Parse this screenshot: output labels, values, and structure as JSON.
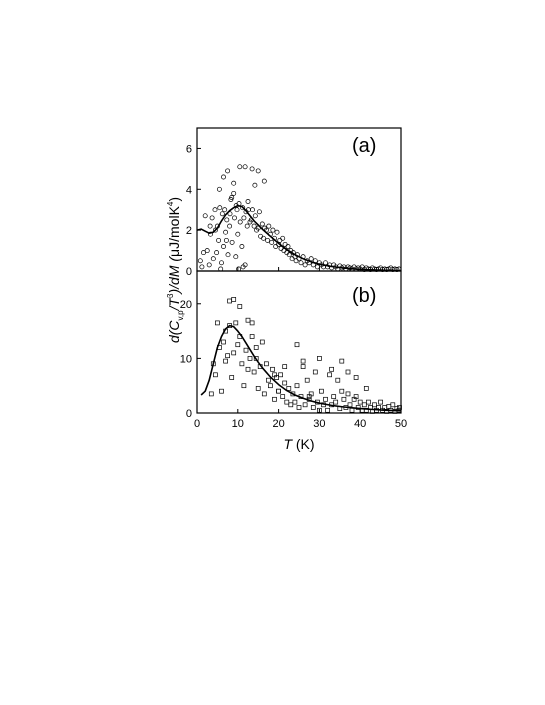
{
  "chart_data": [
    {
      "panel_label": "(a)",
      "type": "scatter",
      "xlim": [
        0,
        50
      ],
      "ylim": [
        0,
        7
      ],
      "xticks": [
        0,
        10,
        20,
        30,
        40,
        50
      ],
      "yticks": [
        0,
        2,
        4,
        6
      ],
      "ytick_labels": [
        "0",
        "2",
        "4",
        "6"
      ],
      "marker": "circle",
      "series": [
        {
          "kind": "points",
          "x": [
            0.8,
            1.2,
            1.6,
            2.0,
            2.5,
            3.0,
            3.3,
            3.7,
            4.0,
            4.4,
            4.8,
            5.0,
            5.3,
            5.6,
            6.0,
            6.2,
            6.5,
            6.8,
            7.0,
            7.3,
            7.6,
            8.0,
            8.3,
            8.6,
            9.0,
            9.2,
            9.5,
            9.8,
            10.0,
            10.3,
            10.6,
            11.0,
            11.2,
            11.5,
            11.8,
            12.0,
            12.3,
            12.6,
            13.0,
            13.3,
            13.6,
            14.0,
            14.3,
            14.6,
            15.0,
            15.3,
            15.6,
            16.0,
            16.3,
            16.6,
            17.0,
            17.3,
            17.6,
            18.0,
            18.3,
            18.6,
            19.0,
            19.3,
            19.6,
            20.0,
            20.3,
            20.6,
            21.0,
            21.3,
            21.6,
            22.0,
            22.3,
            22.6,
            23.0,
            23.3,
            23.6,
            24.0,
            24.3,
            24.6,
            25.0,
            25.5,
            26.0,
            26.5,
            27.0,
            27.5,
            28.0,
            28.5,
            29.0,
            29.5,
            30.0,
            30.5,
            31.0,
            31.5,
            32.0,
            32.5,
            33.0,
            33.5,
            34.0,
            34.5,
            35.0,
            35.5,
            36.0,
            36.5,
            37.0,
            37.5,
            38.0,
            38.5,
            39.0,
            39.5,
            40.0,
            40.5,
            41.0,
            41.5,
            42.0,
            42.5,
            43.0,
            43.5,
            44.0,
            44.5,
            45.0,
            45.5,
            46.0,
            46.5,
            47.0,
            47.5,
            48.0,
            48.5,
            49.0,
            49.5,
            5.5,
            7.5,
            9.0,
            10.5,
            11.8,
            13.5,
            15.0,
            6.5,
            8.5,
            12.5,
            14.2,
            16.5,
            4.5,
            3.2,
            5.8,
            7.2,
            9.6,
            11.3,
            8.1,
            10.2
          ],
          "y": [
            0.5,
            0.2,
            0.9,
            2.7,
            1.0,
            0.3,
            1.8,
            2.6,
            0.6,
            3.0,
            0.9,
            2.2,
            1.5,
            3.1,
            0.4,
            2.8,
            1.2,
            3.0,
            1.9,
            2.5,
            0.8,
            2.2,
            3.5,
            1.4,
            3.8,
            2.6,
            0.7,
            3.0,
            1.8,
            3.3,
            2.4,
            1.2,
            3.1,
            2.6,
            0.3,
            2.9,
            2.2,
            3.0,
            2.4,
            2.5,
            3.0,
            2.2,
            2.7,
            2.0,
            2.1,
            2.9,
            1.7,
            2.3,
            1.6,
            2.1,
            2.0,
            1.5,
            2.2,
            1.8,
            1.4,
            2.0,
            1.6,
            1.2,
            1.9,
            1.3,
            1.5,
            1.1,
            1.6,
            1.0,
            1.3,
            0.9,
            1.2,
            0.8,
            1.0,
            0.6,
            0.9,
            0.7,
            0.5,
            0.8,
            0.6,
            0.4,
            0.7,
            0.3,
            0.5,
            0.4,
            0.6,
            0.3,
            0.5,
            0.2,
            0.4,
            0.3,
            0.2,
            0.4,
            0.2,
            0.3,
            0.15,
            0.3,
            0.2,
            0.1,
            0.25,
            0.15,
            0.2,
            0.1,
            0.2,
            0.15,
            0.1,
            0.2,
            0.1,
            0.15,
            0.1,
            0.2,
            0.05,
            0.15,
            0.1,
            0.05,
            0.15,
            0.1,
            0.05,
            0.1,
            0.15,
            0.05,
            0.1,
            0.05,
            0.1,
            0.15,
            0.05,
            0.1,
            0.05,
            0.1,
            4.0,
            4.9,
            4.3,
            5.1,
            5.1,
            5.0,
            4.9,
            4.6,
            3.6,
            3.4,
            4.2,
            4.4,
            2.0,
            2.2,
            0.1,
            1.5,
            3.2,
            0.2,
            2.8,
            0.1
          ]
        },
        {
          "kind": "curve",
          "x": [
            0,
            1,
            2,
            3,
            4,
            5,
            6,
            7,
            8,
            9,
            10,
            11,
            12,
            13,
            14,
            15,
            16,
            18,
            20,
            22,
            24,
            26,
            28,
            30,
            33,
            36,
            40,
            45,
            50
          ],
          "y": [
            2.0,
            2.05,
            1.95,
            1.85,
            1.9,
            2.1,
            2.45,
            2.75,
            2.95,
            3.1,
            3.2,
            3.15,
            2.95,
            2.7,
            2.45,
            2.25,
            2.05,
            1.7,
            1.35,
            1.05,
            0.8,
            0.6,
            0.45,
            0.33,
            0.22,
            0.14,
            0.08,
            0.04,
            0.02
          ]
        }
      ]
    },
    {
      "panel_label": "(b)",
      "type": "scatter",
      "xlabel_parts": [
        "T",
        " (K)"
      ],
      "ylabel_parts": [
        "d(C",
        "v,p",
        "/T",
        "3",
        ")/dM (",
        "μ",
        "J/molK",
        "4",
        ")"
      ],
      "xlim": [
        0,
        50
      ],
      "ylim": [
        0,
        26
      ],
      "xticks": [
        0,
        10,
        20,
        30,
        40,
        50
      ],
      "xtick_labels": [
        "0",
        "10",
        "20",
        "30",
        "40",
        "50"
      ],
      "yticks": [
        0,
        10,
        20
      ],
      "ytick_labels": [
        "0",
        "10",
        "20"
      ],
      "marker": "square",
      "series": [
        {
          "kind": "points",
          "x": [
            3.5,
            4.0,
            4.5,
            5.0,
            5.5,
            6.0,
            6.5,
            7.0,
            7.5,
            8.0,
            8.5,
            9.0,
            9.5,
            10.0,
            10.5,
            11.0,
            11.5,
            12.0,
            12.5,
            13.0,
            13.5,
            14.0,
            14.5,
            15.0,
            15.5,
            16.0,
            16.5,
            17.0,
            17.5,
            18.0,
            18.5,
            19.0,
            19.5,
            20.0,
            20.5,
            21.0,
            21.5,
            22.0,
            22.5,
            23.0,
            23.5,
            24.0,
            24.5,
            25.0,
            25.5,
            26.0,
            26.5,
            27.0,
            27.5,
            28.0,
            28.5,
            29.0,
            29.5,
            30.0,
            30.5,
            31.0,
            31.5,
            32.0,
            32.5,
            33.0,
            33.5,
            34.0,
            34.5,
            35.0,
            35.5,
            36.0,
            36.5,
            37.0,
            37.5,
            38.0,
            38.5,
            39.0,
            39.5,
            40.0,
            40.5,
            41.0,
            41.5,
            42.0,
            42.5,
            43.0,
            43.5,
            44.0,
            44.5,
            45.0,
            45.5,
            46.0,
            46.5,
            47.0,
            47.5,
            48.0,
            48.5,
            49.0,
            49.5,
            50.0,
            8.0,
            9.0,
            10.5,
            12.5,
            13.5,
            7.0,
            14.5,
            19.0,
            20.0,
            21.5,
            24.5,
            26.0,
            27.5,
            30.0,
            33.0,
            35.5,
            37.0,
            39.0,
            41.5
          ],
          "y": [
            3.5,
            9.0,
            7.0,
            16.5,
            12.0,
            4.0,
            13.0,
            15.0,
            10.5,
            16.0,
            6.5,
            11.0,
            16.5,
            12.5,
            14.0,
            9.0,
            5.0,
            11.5,
            8.0,
            10.0,
            16.5,
            7.5,
            12.0,
            4.5,
            8.5,
            13.0,
            3.5,
            9.0,
            6.0,
            5.0,
            8.0,
            2.5,
            6.5,
            4.0,
            7.0,
            3.0,
            5.5,
            2.0,
            4.5,
            1.5,
            3.5,
            2.0,
            5.0,
            1.0,
            3.0,
            9.5,
            1.5,
            6.0,
            2.5,
            3.5,
            1.0,
            7.5,
            2.0,
            0.5,
            4.0,
            1.5,
            2.5,
            0.5,
            7.0,
            1.5,
            3.0,
            2.0,
            6.0,
            0.8,
            4.0,
            2.5,
            1.0,
            3.5,
            1.5,
            0.5,
            2.5,
            3.0,
            1.0,
            2.0,
            0.5,
            1.5,
            0.5,
            2.0,
            1.0,
            0.3,
            1.5,
            0.5,
            1.0,
            2.0,
            0.5,
            1.0,
            0.3,
            1.2,
            0.5,
            1.5,
            0.3,
            0.8,
            0.5,
            1.0,
            20.5,
            20.8,
            19.5,
            17.0,
            14.0,
            9.5,
            10.0,
            7.0,
            4.0,
            8.5,
            12.5,
            8.5,
            3.0,
            10.0,
            8.0,
            9.5,
            7.5,
            6.5,
            4.5
          ]
        },
        {
          "kind": "curve",
          "x": [
            1,
            2,
            3,
            4,
            5,
            6,
            7,
            8,
            9,
            10,
            11,
            12,
            13,
            14,
            15,
            16,
            18,
            20,
            22,
            24,
            26,
            28,
            30,
            33,
            36,
            40,
            45,
            50
          ],
          "y": [
            3.3,
            4.0,
            6.0,
            9.0,
            12.0,
            14.0,
            15.4,
            16.0,
            15.8,
            15.0,
            14.0,
            12.8,
            11.6,
            10.4,
            9.3,
            8.3,
            6.6,
            5.2,
            4.1,
            3.3,
            2.7,
            2.2,
            1.8,
            1.4,
            1.1,
            0.8,
            0.55,
            0.4
          ]
        }
      ]
    }
  ]
}
